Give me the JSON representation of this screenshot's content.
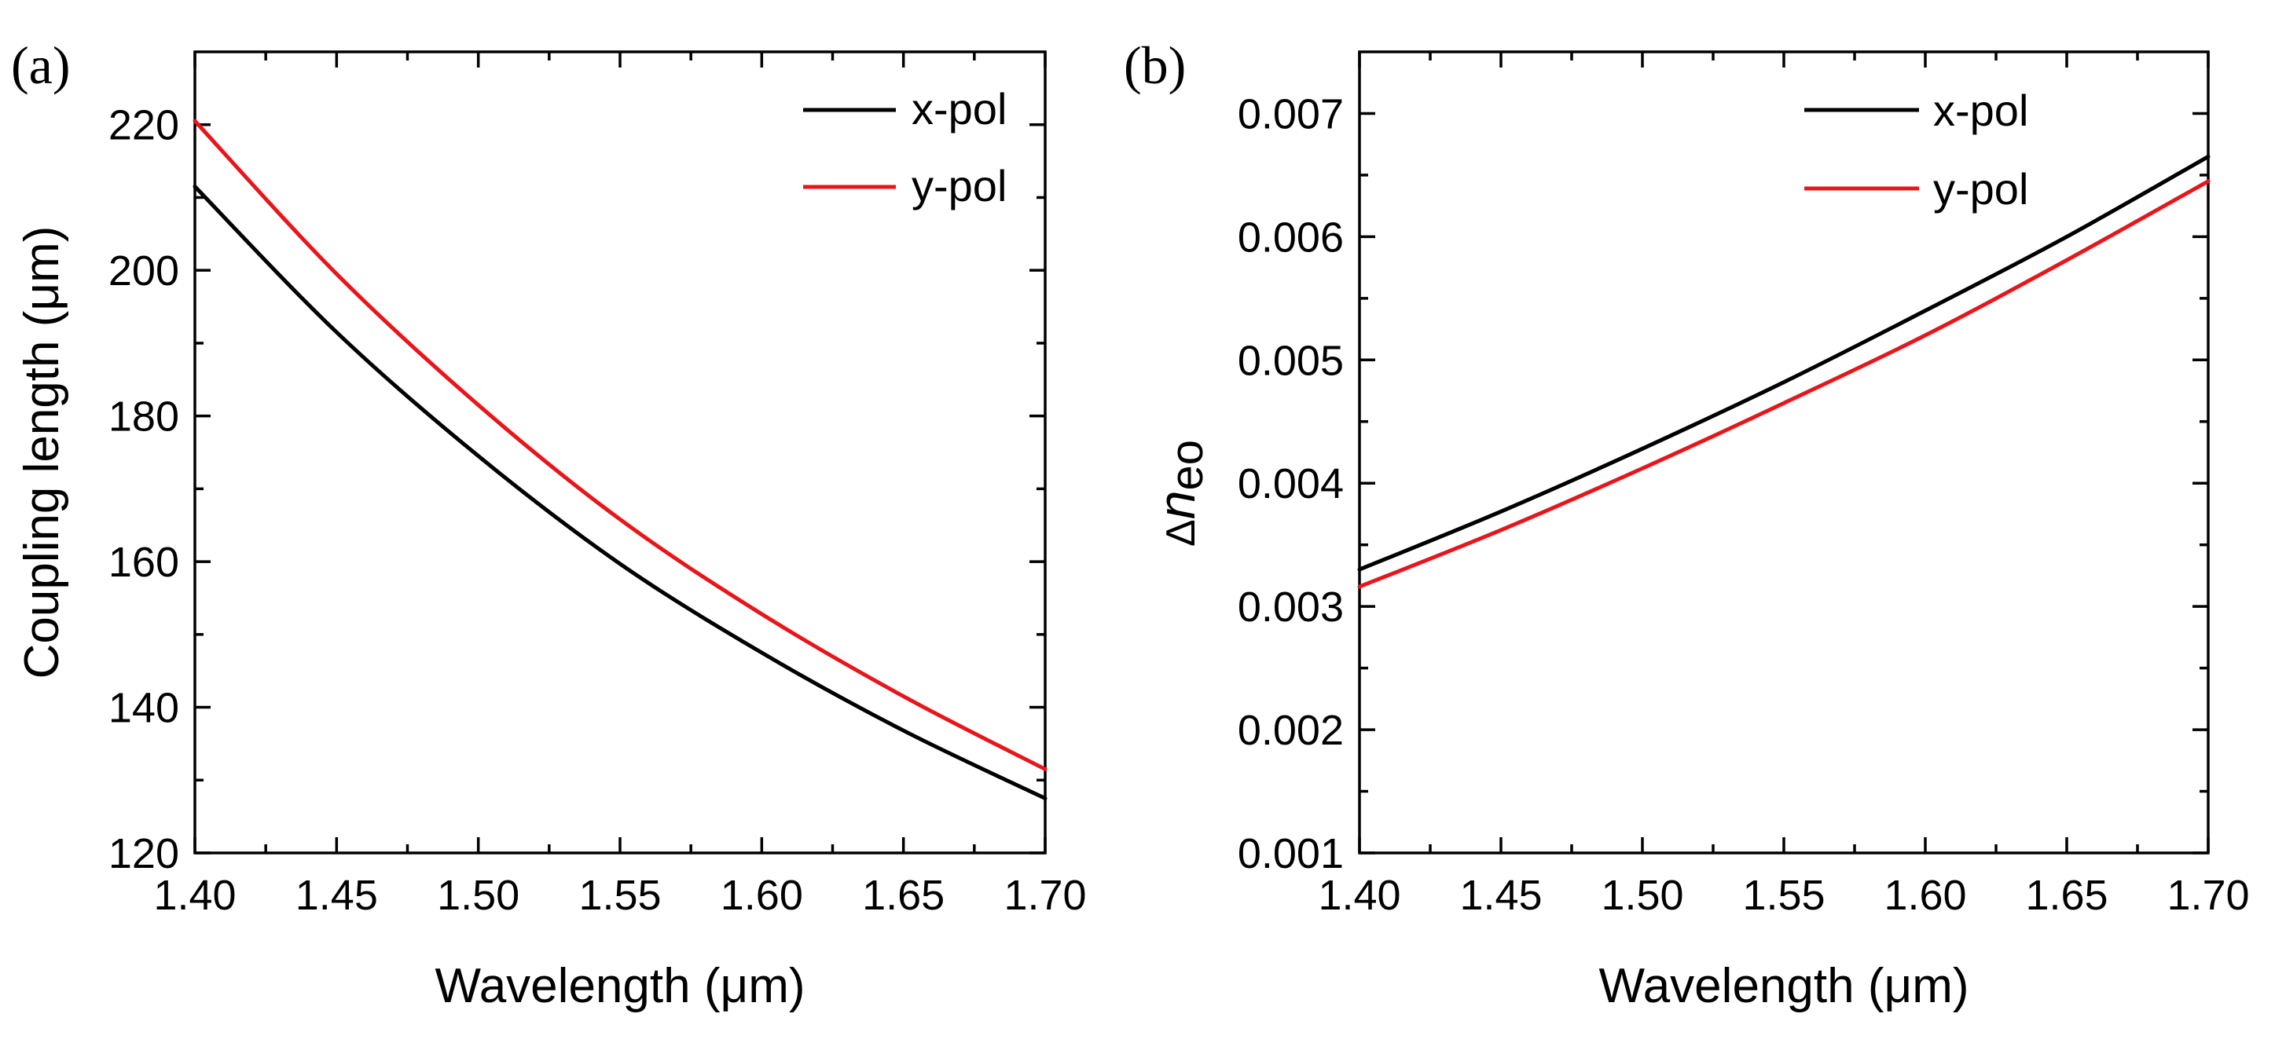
{
  "chart_data": [
    {
      "type": "line",
      "panel_label": "(a)",
      "xlabel": "Wavelength",
      "xunit": "(μm)",
      "ylabel": "Coupling length",
      "yunit": "(μm)",
      "xlim": [
        1.4,
        1.7
      ],
      "ylim": [
        120,
        230
      ],
      "xticks": [
        1.4,
        1.45,
        1.5,
        1.55,
        1.6,
        1.65,
        1.7
      ],
      "xtick_labels": [
        "1.40",
        "1.45",
        "1.50",
        "1.55",
        "1.60",
        "1.65",
        "1.70"
      ],
      "yticks": [
        120,
        140,
        160,
        180,
        200,
        220
      ],
      "ytick_labels": [
        "120",
        "140",
        "160",
        "180",
        "200",
        "220"
      ],
      "grid": false,
      "legend_position": "top-right",
      "series": [
        {
          "name": "x-pol",
          "color": "#000000",
          "x": [
            1.4,
            1.45,
            1.5,
            1.55,
            1.6,
            1.65,
            1.7
          ],
          "y": [
            211.5,
            191.5,
            174.5,
            159.7,
            147.5,
            136.8,
            127.5
          ]
        },
        {
          "name": "y-pol",
          "color": "#e8151b",
          "x": [
            1.4,
            1.45,
            1.5,
            1.55,
            1.6,
            1.65,
            1.7
          ],
          "y": [
            220.5,
            199.5,
            181.5,
            165.8,
            152.8,
            141.5,
            131.5
          ]
        }
      ]
    },
    {
      "type": "line",
      "panel_label": "(b)",
      "xlabel": "Wavelength",
      "xunit": "(μm)",
      "ylabel_prefix": "Δ",
      "ylabel_symbol": "n",
      "ylabel_subscript": "eo",
      "xlim": [
        1.4,
        1.7
      ],
      "ylim": [
        0.001,
        0.0075
      ],
      "xticks": [
        1.4,
        1.45,
        1.5,
        1.55,
        1.6,
        1.65,
        1.7
      ],
      "xtick_labels": [
        "1.40",
        "1.45",
        "1.50",
        "1.55",
        "1.60",
        "1.65",
        "1.70"
      ],
      "yticks": [
        0.001,
        0.002,
        0.003,
        0.004,
        0.005,
        0.006,
        0.007
      ],
      "ytick_labels": [
        "0.001",
        "0.002",
        "0.003",
        "0.004",
        "0.005",
        "0.006",
        "0.007"
      ],
      "grid": false,
      "legend_position": "top-center",
      "series": [
        {
          "name": "x-pol",
          "color": "#000000",
          "x": [
            1.4,
            1.45,
            1.5,
            1.55,
            1.6,
            1.65,
            1.7
          ],
          "y": [
            0.0033,
            0.00377,
            0.00428,
            0.00482,
            0.0054,
            0.006,
            0.00665
          ]
        },
        {
          "name": "y-pol",
          "color": "#e8151b",
          "x": [
            1.4,
            1.45,
            1.5,
            1.55,
            1.6,
            1.65,
            1.7
          ],
          "y": [
            0.00316,
            0.00362,
            0.00412,
            0.00465,
            0.0052,
            0.00581,
            0.00645
          ]
        }
      ]
    }
  ]
}
